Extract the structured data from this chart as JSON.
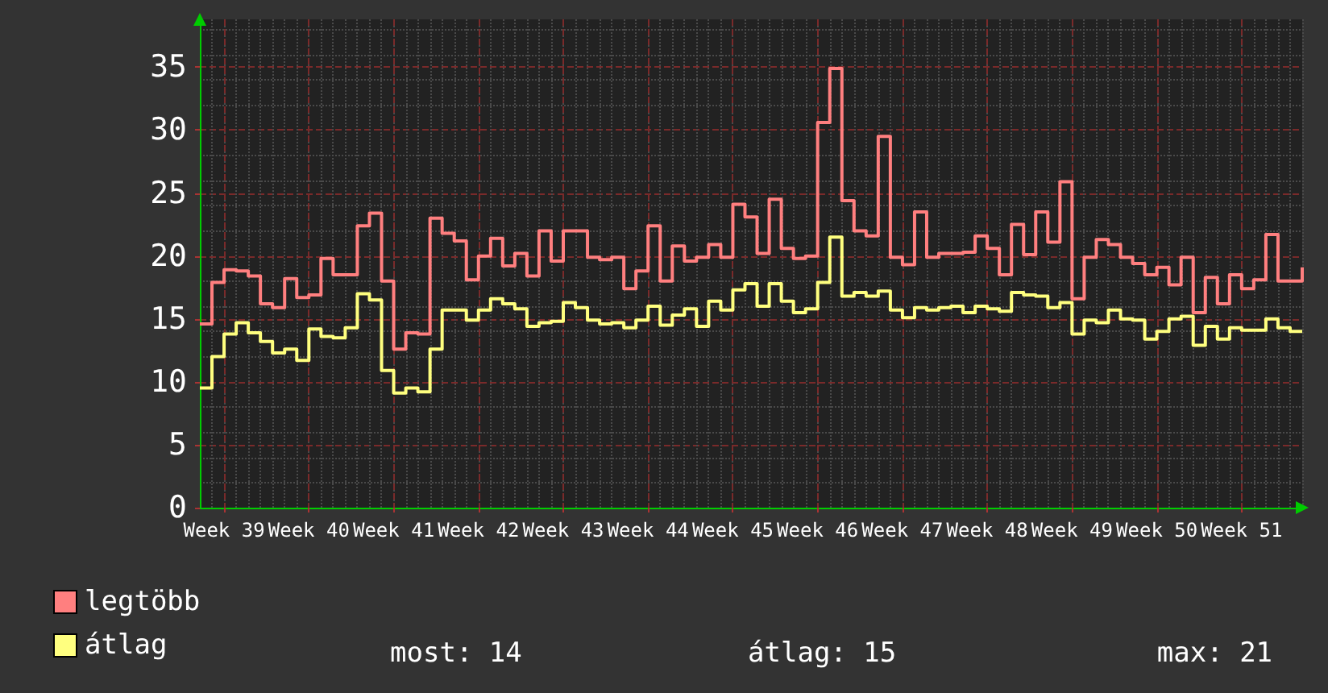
{
  "chart_data": {
    "type": "step",
    "categories": [
      null,
      null,
      "Week 39",
      null,
      null,
      null,
      null,
      null,
      null,
      "Week 40",
      null,
      null,
      null,
      null,
      null,
      null,
      "Week 41",
      null,
      null,
      null,
      null,
      null,
      null,
      "Week 42",
      null,
      null,
      null,
      null,
      null,
      null,
      "Week 43",
      null,
      null,
      null,
      null,
      null,
      null,
      "Week 44",
      null,
      null,
      null,
      null,
      null,
      null,
      "Week 45",
      null,
      null,
      null,
      null,
      null,
      null,
      "Week 46",
      null,
      null,
      null,
      null,
      null,
      null,
      "Week 47",
      null,
      null,
      null,
      null,
      null,
      null,
      "Week 48",
      null,
      null,
      null,
      null,
      null,
      null,
      "Week 49",
      null,
      null,
      null,
      null,
      null,
      null,
      "Week 50",
      null,
      null,
      null,
      null,
      null,
      null,
      "Week 51",
      null,
      null,
      null,
      null,
      null
    ],
    "series": [
      {
        "name": "legtöbb",
        "color": "#ff7f7f",
        "values": [
          14.6,
          17.9,
          18.9,
          18.8,
          18.4,
          16.2,
          15.9,
          18.2,
          16.7,
          16.9,
          19.8,
          18.5,
          18.5,
          22.4,
          23.4,
          18.0,
          12.6,
          13.9,
          13.8,
          23.0,
          21.8,
          21.2,
          18.1,
          20.0,
          21.4,
          19.2,
          20.2,
          18.4,
          22.0,
          19.6,
          22.0,
          22.0,
          19.9,
          19.7,
          19.9,
          17.4,
          18.8,
          22.4,
          18.0,
          20.8,
          19.6,
          19.9,
          20.9,
          19.9,
          24.1,
          23.1,
          20.2,
          24.5,
          20.6,
          19.8,
          20.0,
          30.6,
          34.9,
          24.4,
          22.0,
          21.6,
          29.5,
          19.9,
          19.3,
          23.5,
          19.9,
          20.2,
          20.2,
          20.3,
          21.6,
          20.6,
          18.5,
          22.5,
          20.1,
          23.5,
          21.1,
          25.9,
          16.6,
          19.9,
          21.3,
          20.9,
          19.9,
          19.4,
          18.5,
          19.1,
          17.7,
          19.9,
          15.5,
          18.3,
          16.2,
          18.5,
          17.4,
          18.1,
          21.7,
          18.0,
          18.0,
          19.1
        ]
      },
      {
        "name": "átlag",
        "color": "#ffff7f",
        "values": [
          9.5,
          12.0,
          13.8,
          14.7,
          13.9,
          13.2,
          12.3,
          12.6,
          11.7,
          14.2,
          13.6,
          13.5,
          14.3,
          17.0,
          16.5,
          10.9,
          9.1,
          9.5,
          9.2,
          12.6,
          15.7,
          15.7,
          14.9,
          15.7,
          16.6,
          16.2,
          15.8,
          14.4,
          14.7,
          14.8,
          16.3,
          15.9,
          14.9,
          14.6,
          14.7,
          14.3,
          14.9,
          16.0,
          14.5,
          15.3,
          15.8,
          14.4,
          16.4,
          15.7,
          17.3,
          17.8,
          16.0,
          17.8,
          16.4,
          15.5,
          15.8,
          17.9,
          21.5,
          16.8,
          17.1,
          16.8,
          17.2,
          15.7,
          15.1,
          15.9,
          15.7,
          15.9,
          16.0,
          15.5,
          16.0,
          15.8,
          15.6,
          17.1,
          16.9,
          16.8,
          15.9,
          16.3,
          13.8,
          14.9,
          14.7,
          15.7,
          15.0,
          14.9,
          13.4,
          14.0,
          15.0,
          15.2,
          12.9,
          14.4,
          13.4,
          14.3,
          14.1,
          14.1,
          15.0,
          14.3,
          14.0,
          14.0
        ]
      }
    ],
    "ylim": [
      0,
      38.8
    ],
    "yticks": [
      0,
      5,
      10,
      15,
      20,
      25,
      30,
      35
    ],
    "grid": true,
    "legend": "bottom left",
    "annotations": [
      "most: 14",
      "átlag: 15",
      "max: 21"
    ]
  }
}
